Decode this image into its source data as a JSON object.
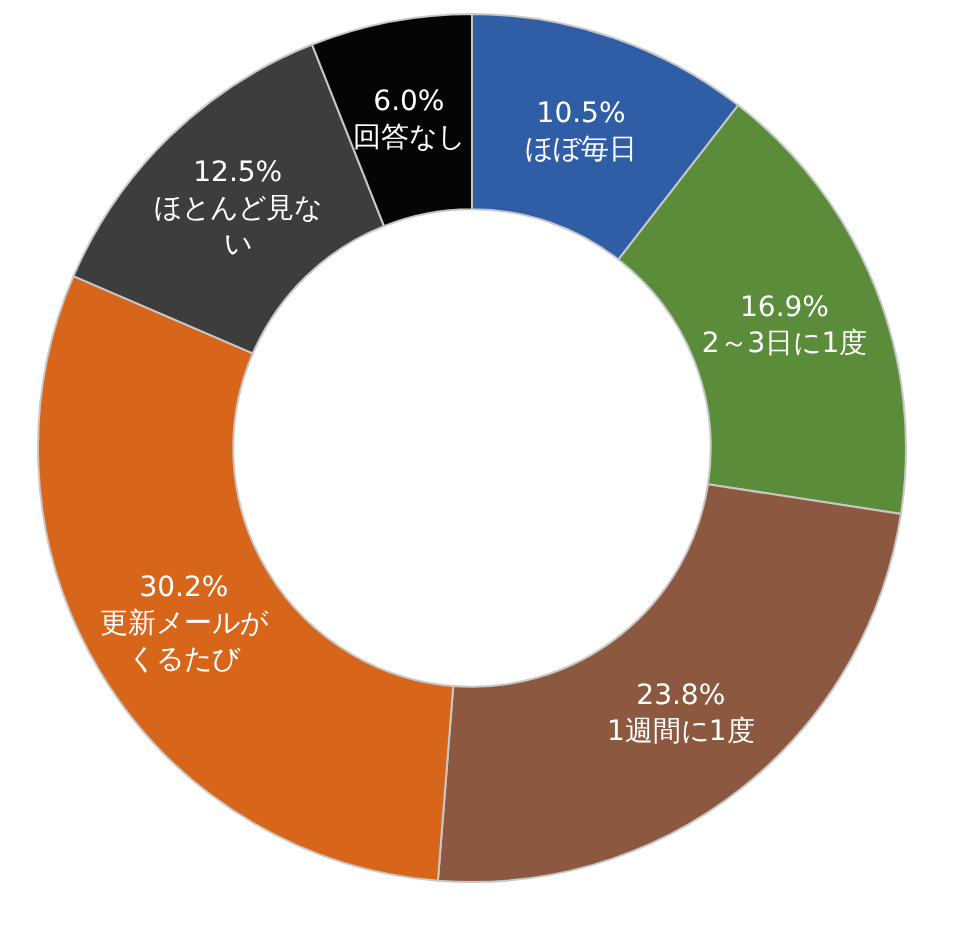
{
  "chart_data": {
    "type": "donut",
    "categories": [
      "ほぼ毎日",
      "2～3日に1度",
      "1週間に1度",
      "更新メールがくるたび",
      "ほとんど見ない",
      "回答なし"
    ],
    "values": [
      10.5,
      16.9,
      23.8,
      30.2,
      12.5,
      6.0
    ],
    "value_labels": [
      "10.5%",
      "16.9%",
      "23.8%",
      "30.2%",
      "12.5%",
      "6.0%"
    ],
    "colors": [
      "#2f5ea6",
      "#5b8c3a",
      "#8c5940",
      "#d7661a",
      "#3d3d3d",
      "#050505"
    ],
    "legend": false
  }
}
